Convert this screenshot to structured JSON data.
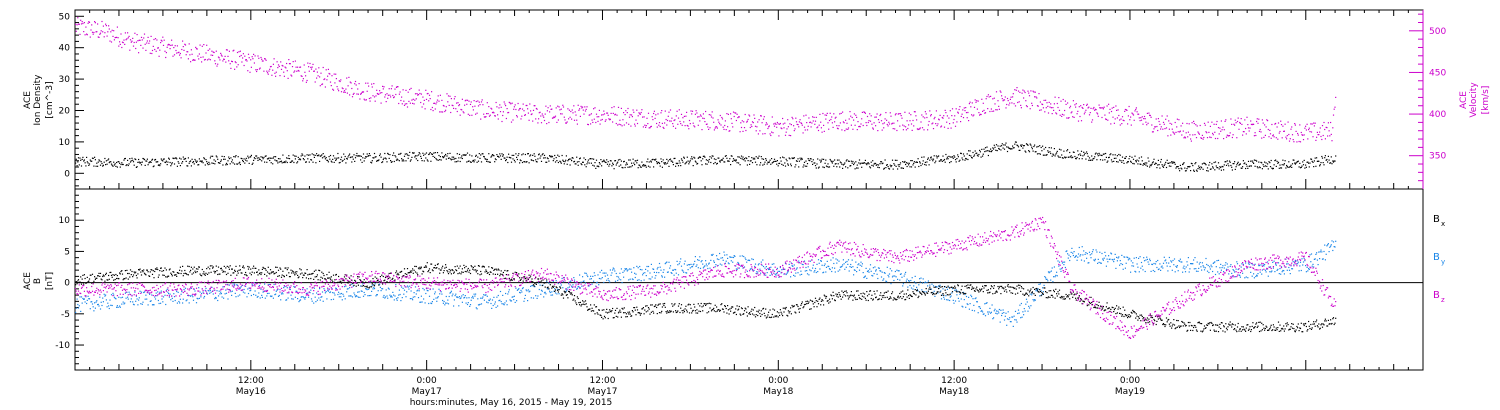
{
  "chart_data": [
    {
      "type": "scatter",
      "panel": "top",
      "left_axis": {
        "label_lines": [
          "ACE",
          "Ion Density"
        ],
        "unit_lines": [
          "[cm^-3]"
        ],
        "ticks": [
          0,
          10,
          20,
          30,
          40,
          50
        ],
        "ylim": [
          -5,
          52
        ],
        "color": "#000000"
      },
      "right_axis": {
        "label_lines": [
          "ACE",
          "Velocity"
        ],
        "unit_lines": [
          "[km/s]"
        ],
        "ticks": [
          350,
          400,
          450,
          500
        ],
        "ylim": [
          310,
          525
        ],
        "color": "#cc00cc"
      },
      "series": [
        {
          "name": "ACE Ion Density",
          "axis": "left",
          "color": "#000000",
          "keypoints": [
            [
              0,
              4
            ],
            [
              4,
              3.5
            ],
            [
              8,
              4
            ],
            [
              12,
              4.5
            ],
            [
              16,
              5
            ],
            [
              20,
              5
            ],
            [
              24,
              5.5
            ],
            [
              28,
              5
            ],
            [
              32,
              5
            ],
            [
              36,
              3
            ],
            [
              40,
              3.5
            ],
            [
              44,
              4.5
            ],
            [
              48,
              4
            ],
            [
              52,
              3
            ],
            [
              56,
              3
            ],
            [
              60,
              5
            ],
            [
              64,
              9
            ],
            [
              68,
              6
            ],
            [
              72,
              4.5
            ],
            [
              76,
              2
            ],
            [
              80,
              3
            ],
            [
              84,
              3
            ],
            [
              86,
              5
            ]
          ]
        },
        {
          "name": "ACE Velocity",
          "axis": "right",
          "color": "#cc00cc",
          "keypoints": [
            [
              0,
              505
            ],
            [
              2,
              500
            ],
            [
              4,
              487
            ],
            [
              8,
              475
            ],
            [
              12,
              462
            ],
            [
              16,
              450
            ],
            [
              20,
              427
            ],
            [
              24,
              418
            ],
            [
              28,
              405
            ],
            [
              32,
              400
            ],
            [
              36,
              400
            ],
            [
              40,
              395
            ],
            [
              44,
              393
            ],
            [
              48,
              385
            ],
            [
              52,
              393
            ],
            [
              56,
              391
            ],
            [
              60,
              396
            ],
            [
              62,
              413
            ],
            [
              64,
              422
            ],
            [
              68,
              405
            ],
            [
              72,
              398
            ],
            [
              76,
              380
            ],
            [
              80,
              385
            ],
            [
              84,
              378
            ],
            [
              85.8,
              380
            ],
            [
              86,
              430
            ]
          ]
        }
      ]
    },
    {
      "type": "scatter",
      "panel": "bottom",
      "left_axis": {
        "label_lines": [
          "ACE",
          "B"
        ],
        "unit_lines": [
          "[nT]"
        ],
        "ticks": [
          -10,
          -5,
          0,
          5,
          10
        ],
        "ylim": [
          -14,
          15
        ],
        "color": "#000000"
      },
      "legend": [
        {
          "label": "B",
          "sub": "x",
          "color": "#000000"
        },
        {
          "label": "B",
          "sub": "y",
          "color": "#1a86e8"
        },
        {
          "label": "B",
          "sub": "z",
          "color": "#cc00cc"
        }
      ],
      "series": [
        {
          "name": "Bx",
          "color": "#000000",
          "keypoints": [
            [
              0,
              0.5
            ],
            [
              4,
              1.5
            ],
            [
              8,
              2
            ],
            [
              12,
              2
            ],
            [
              16,
              1.5
            ],
            [
              20,
              0
            ],
            [
              24,
              2.5
            ],
            [
              28,
              2
            ],
            [
              32,
              0
            ],
            [
              36,
              -5
            ],
            [
              40,
              -4
            ],
            [
              44,
              -4
            ],
            [
              48,
              -5
            ],
            [
              52,
              -2
            ],
            [
              56,
              -2
            ],
            [
              60,
              -1
            ],
            [
              64,
              -1
            ],
            [
              68,
              -2
            ],
            [
              72,
              -5
            ],
            [
              76,
              -7
            ],
            [
              80,
              -7
            ],
            [
              84,
              -7
            ],
            [
              86,
              -6
            ]
          ]
        },
        {
          "name": "By",
          "color": "#1a86e8",
          "keypoints": [
            [
              0,
              -3.5
            ],
            [
              4,
              -2.5
            ],
            [
              8,
              -2
            ],
            [
              12,
              -1
            ],
            [
              16,
              -2
            ],
            [
              20,
              -1
            ],
            [
              24,
              -2
            ],
            [
              28,
              -3
            ],
            [
              32,
              -1
            ],
            [
              36,
              1
            ],
            [
              40,
              2
            ],
            [
              44,
              4
            ],
            [
              48,
              2
            ],
            [
              52,
              3
            ],
            [
              56,
              1
            ],
            [
              60,
              -2
            ],
            [
              64,
              -6
            ],
            [
              68,
              5
            ],
            [
              72,
              3
            ],
            [
              76,
              3
            ],
            [
              80,
              2
            ],
            [
              84,
              3
            ],
            [
              86,
              6
            ]
          ]
        },
        {
          "name": "Bz",
          "color": "#cc00cc",
          "keypoints": [
            [
              0,
              -1
            ],
            [
              4,
              -1
            ],
            [
              8,
              -1
            ],
            [
              12,
              0
            ],
            [
              16,
              -1
            ],
            [
              20,
              1
            ],
            [
              24,
              0
            ],
            [
              28,
              -0.5
            ],
            [
              32,
              1.5
            ],
            [
              36,
              -2
            ],
            [
              40,
              -1
            ],
            [
              44,
              2
            ],
            [
              48,
              2
            ],
            [
              52,
              6
            ],
            [
              56,
              4
            ],
            [
              60,
              6
            ],
            [
              64,
              8
            ],
            [
              66,
              10
            ],
            [
              68,
              -1
            ],
            [
              72,
              -8
            ],
            [
              76,
              -2
            ],
            [
              80,
              3
            ],
            [
              84,
              4
            ],
            [
              86,
              -4
            ]
          ]
        }
      ]
    }
  ],
  "x_axis": {
    "xlim": [
      0,
      92
    ],
    "major_ticks": [
      {
        "h": 12,
        "time": "12:00",
        "date": "May16"
      },
      {
        "h": 24,
        "time": "0:00",
        "date": "May17"
      },
      {
        "h": 36,
        "time": "12:00",
        "date": "May17"
      },
      {
        "h": 48,
        "time": "0:00",
        "date": "May18"
      },
      {
        "h": 60,
        "time": "12:00",
        "date": "May18"
      },
      {
        "h": 72,
        "time": "0:00",
        "date": "May19"
      }
    ],
    "title": "hours:minutes, May 16, 2015 - May 19, 2015"
  }
}
